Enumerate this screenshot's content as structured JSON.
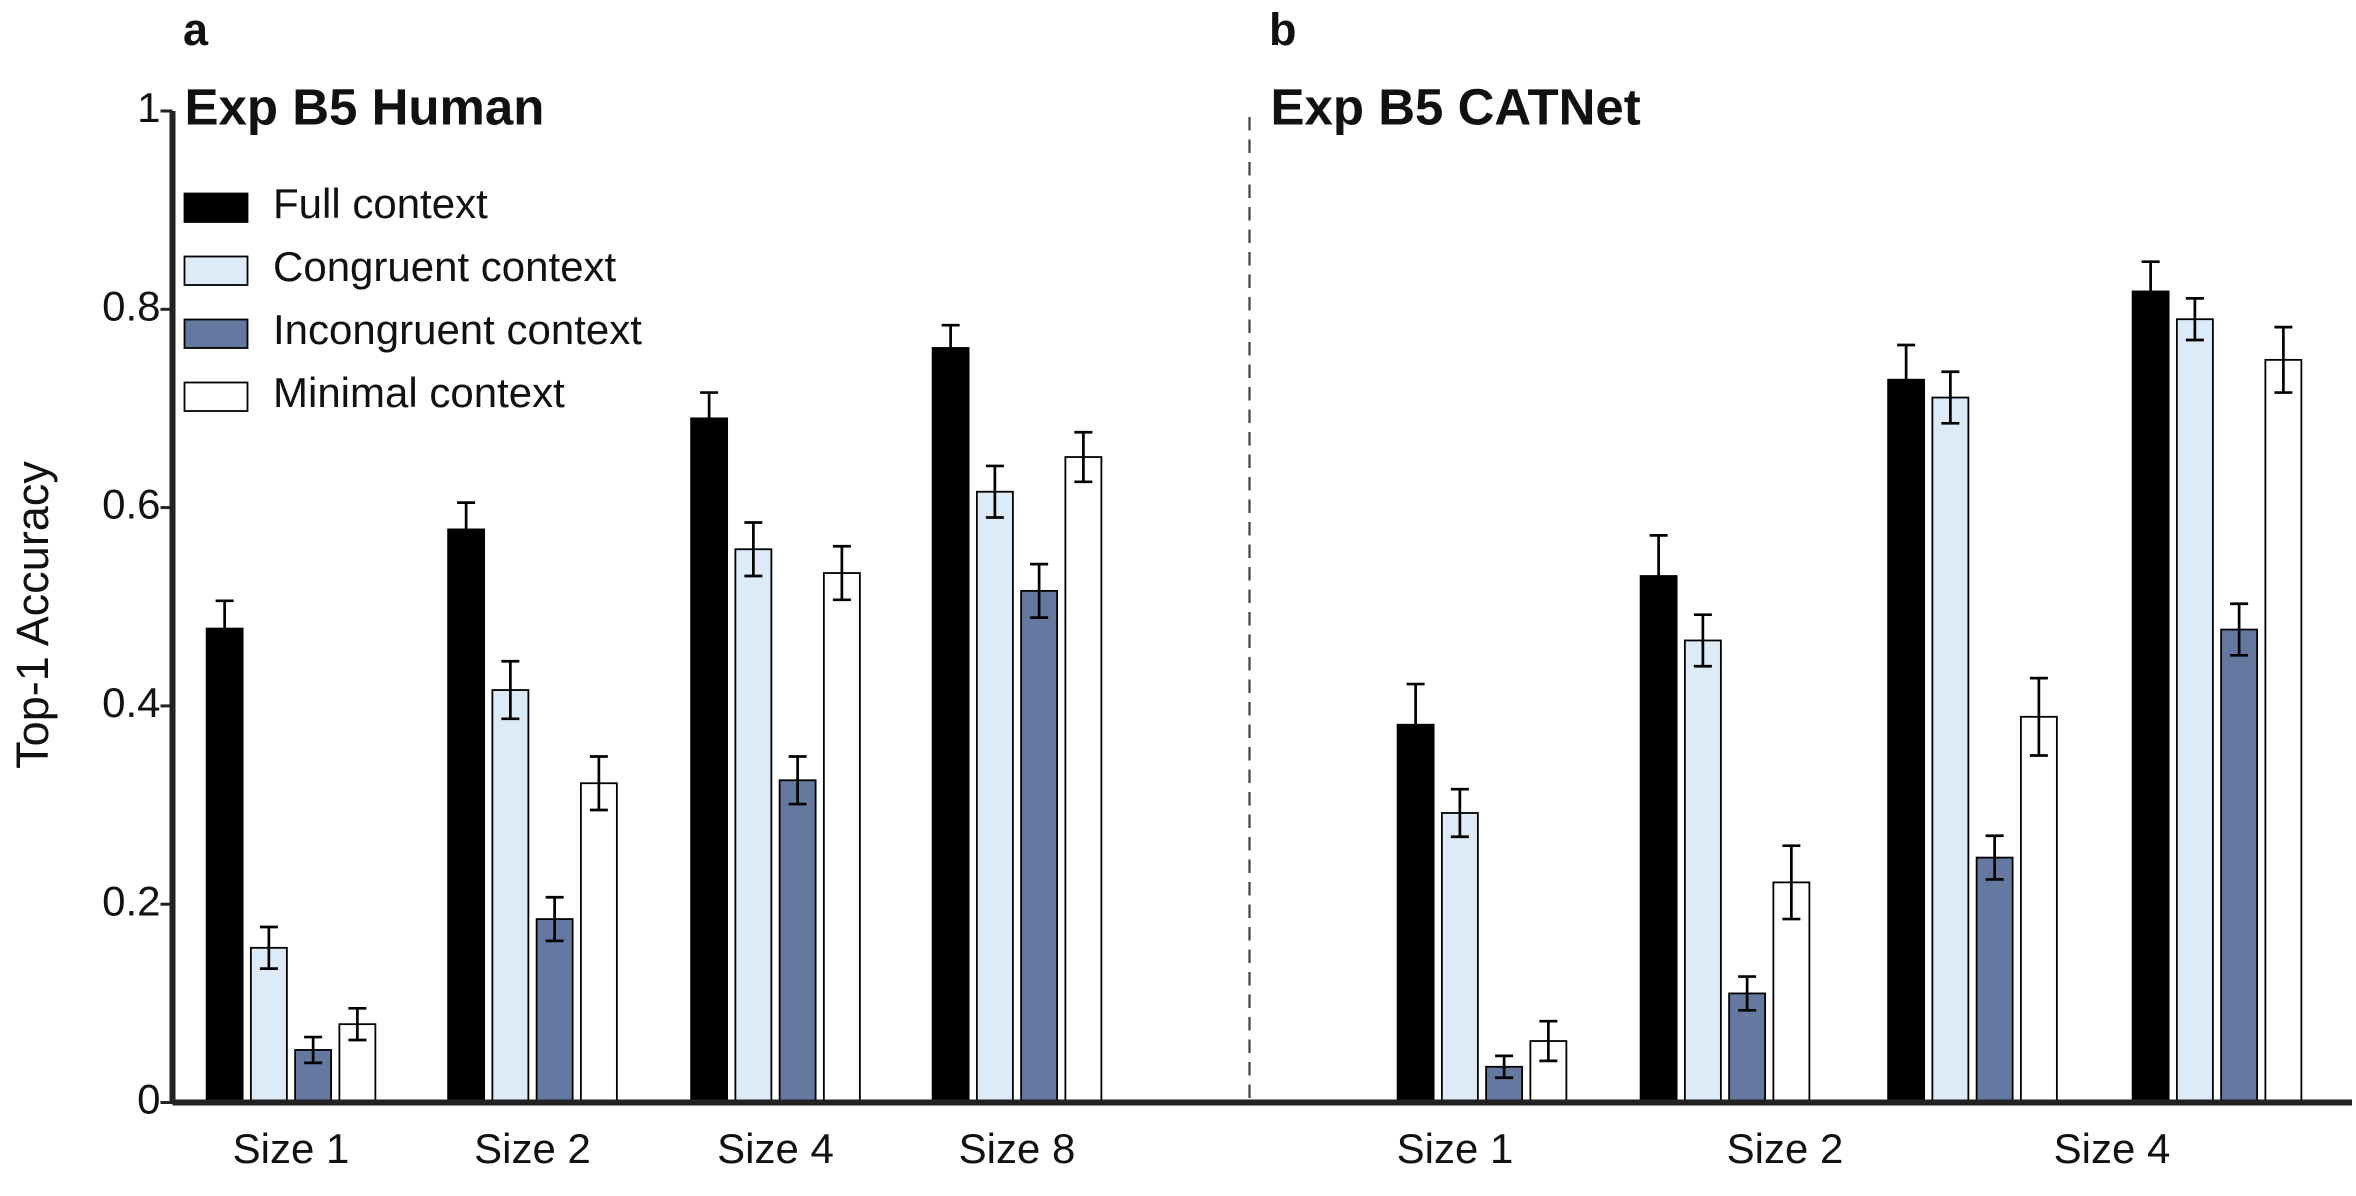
{
  "chart_data": [
    {
      "type": "bar",
      "panel": "a",
      "title": "Exp B5 Human",
      "y_label": "Top-1 Accuracy",
      "categories": [
        "Size 1",
        "Size 2",
        "Size 4",
        "Size 8"
      ],
      "ylim": [
        0,
        1
      ],
      "yticks": [
        0,
        0.2,
        0.4,
        0.6,
        0.8,
        1
      ],
      "legend": "upper left",
      "series": [
        {
          "name": "Full context",
          "color": "#000000",
          "values": [
            0.478,
            0.578,
            0.69,
            0.761
          ],
          "errors": [
            0.028,
            0.027,
            0.026,
            0.023
          ]
        },
        {
          "name": "Congruent context",
          "color": "#ddeaf8",
          "values": [
            0.156,
            0.416,
            0.558,
            0.616
          ],
          "errors": [
            0.021,
            0.029,
            0.027,
            0.026
          ]
        },
        {
          "name": "Incongruent context",
          "color": "#6478a0",
          "values": [
            0.053,
            0.185,
            0.325,
            0.516
          ],
          "errors": [
            0.013,
            0.022,
            0.024,
            0.027
          ]
        },
        {
          "name": "Minimal context",
          "color": "#ffffff",
          "values": [
            0.079,
            0.322,
            0.534,
            0.651
          ],
          "errors": [
            0.016,
            0.027,
            0.027,
            0.025
          ]
        }
      ]
    },
    {
      "type": "bar",
      "panel": "b",
      "title": "Exp B5 CATNet",
      "categories": [
        "Size 1",
        "Size 2",
        "Size 4",
        null
      ],
      "ylim": [
        0,
        1
      ],
      "series": [
        {
          "color": "#000000",
          "values": [
            0.381,
            0.531,
            0.729,
            0.818
          ],
          "errors": [
            0.041,
            0.041,
            0.035,
            0.03
          ]
        },
        {
          "color": "#ddeaf8",
          "values": [
            0.292,
            0.466,
            0.711,
            0.79
          ],
          "errors": [
            0.024,
            0.026,
            0.026,
            0.021
          ]
        },
        {
          "color": "#6478a0",
          "values": [
            0.036,
            0.11,
            0.247,
            0.477
          ],
          "errors": [
            0.011,
            0.017,
            0.022,
            0.026
          ]
        },
        {
          "color": "#ffffff",
          "values": [
            0.062,
            0.222,
            0.389,
            0.749
          ],
          "errors": [
            0.02,
            0.037,
            0.039,
            0.033
          ]
        }
      ]
    }
  ]
}
